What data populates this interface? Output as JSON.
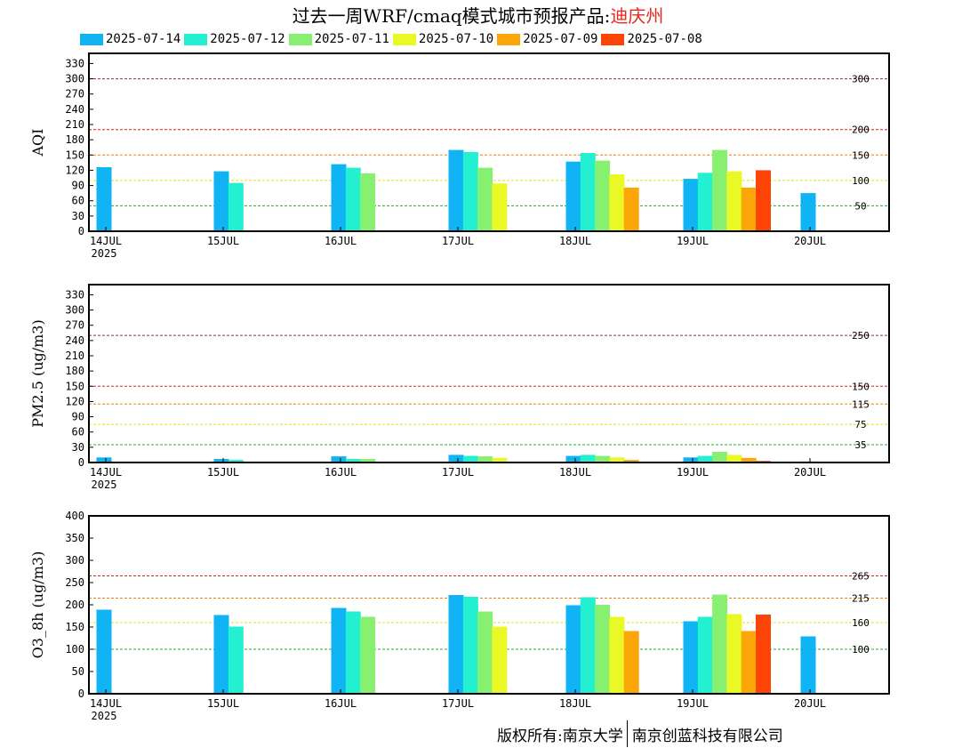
{
  "header": {
    "title_prefix": "过去一周WRF/cmaq模式城市预报产品:",
    "city": "迪庆州"
  },
  "legend": [
    {
      "label": "2025-07-14",
      "color": "#10b4f4"
    },
    {
      "label": "2025-07-12",
      "color": "#22f0d0"
    },
    {
      "label": "2025-07-11",
      "color": "#88f070"
    },
    {
      "label": "2025-07-10",
      "color": "#eaf826"
    },
    {
      "label": "2025-07-09",
      "color": "#fca60a"
    },
    {
      "label": "2025-07-08",
      "color": "#fc4406"
    }
  ],
  "footer": {
    "left": "版权所有:南京大学",
    "right": "南京创蓝科技有限公司"
  },
  "chart_data": [
    {
      "type": "bar",
      "ylabel": "AQI",
      "ylim": [
        0,
        350
      ],
      "yticks": [
        0,
        30,
        60,
        90,
        120,
        150,
        180,
        210,
        240,
        270,
        300,
        330
      ],
      "x_ticks": [
        "14JUL",
        "15JUL",
        "16JUL",
        "17JUL",
        "18JUL",
        "19JUL",
        "20JUL"
      ],
      "x_year": "2025",
      "thresholds": [
        {
          "value": 300,
          "label": "300",
          "color": "#a0205a"
        },
        {
          "value": 200,
          "label": "200",
          "color": "#dd2020"
        },
        {
          "value": 150,
          "label": "150",
          "color": "#ee8010"
        },
        {
          "value": 100,
          "label": "100",
          "color": "#e8e010"
        },
        {
          "value": 50,
          "label": "50",
          "color": "#20b020"
        }
      ],
      "series": [
        {
          "name": "2025-07-14",
          "values": [
            126,
            118,
            132,
            160,
            137,
            103,
            75
          ]
        },
        {
          "name": "2025-07-12",
          "values": [
            95,
            125,
            156,
            154,
            115
          ]
        },
        {
          "name": "2025-07-11",
          "values": [
            114,
            125,
            139,
            160
          ]
        },
        {
          "name": "2025-07-10",
          "values": [
            94,
            112,
            118
          ]
        },
        {
          "name": "2025-07-09",
          "values": [
            86,
            86
          ]
        },
        {
          "name": "2025-07-08",
          "values": [
            120
          ]
        }
      ]
    },
    {
      "type": "bar",
      "ylabel": "PM2.5 (ug/m3)",
      "ylim": [
        0,
        350
      ],
      "yticks": [
        0,
        30,
        60,
        90,
        120,
        150,
        180,
        210,
        240,
        270,
        300,
        330
      ],
      "x_ticks": [
        "14JUL",
        "15JUL",
        "16JUL",
        "17JUL",
        "18JUL",
        "19JUL",
        "20JUL"
      ],
      "x_year": "2025",
      "thresholds": [
        {
          "value": 250,
          "label": "250",
          "color": "#a0205a"
        },
        {
          "value": 150,
          "label": "150",
          "color": "#dd2020"
        },
        {
          "value": 115,
          "label": "115",
          "color": "#ee8010"
        },
        {
          "value": 75,
          "label": "75",
          "color": "#e8e010"
        },
        {
          "value": 35,
          "label": "35",
          "color": "#20b020"
        }
      ],
      "series": [
        {
          "name": "2025-07-14",
          "values": [
            10,
            7,
            12,
            15,
            13,
            10,
            2
          ]
        },
        {
          "name": "2025-07-12",
          "values": [
            5,
            7,
            13,
            15,
            13
          ]
        },
        {
          "name": "2025-07-11",
          "values": [
            7,
            12,
            13,
            21
          ]
        },
        {
          "name": "2025-07-10",
          "values": [
            9,
            10,
            15
          ]
        },
        {
          "name": "2025-07-09",
          "values": [
            5,
            9
          ]
        },
        {
          "name": "2025-07-08",
          "values": [
            3
          ]
        }
      ]
    },
    {
      "type": "bar",
      "ylabel": "O3_8h (ug/m3)",
      "ylim": [
        0,
        400
      ],
      "yticks": [
        0,
        50,
        100,
        150,
        200,
        250,
        300,
        350,
        400
      ],
      "x_ticks": [
        "14JUL",
        "15JUL",
        "16JUL",
        "17JUL",
        "18JUL",
        "19JUL",
        "20JUL"
      ],
      "x_year": "2025",
      "thresholds": [
        {
          "value": 265,
          "label": "265",
          "color": "#dd2020"
        },
        {
          "value": 215,
          "label": "215",
          "color": "#ee8010"
        },
        {
          "value": 160,
          "label": "160",
          "color": "#e8e010"
        },
        {
          "value": 100,
          "label": "100",
          "color": "#20b020"
        }
      ],
      "series": [
        {
          "name": "2025-07-14",
          "values": [
            189,
            177,
            193,
            222,
            199,
            163,
            129
          ]
        },
        {
          "name": "2025-07-12",
          "values": [
            151,
            185,
            218,
            217,
            173
          ]
        },
        {
          "name": "2025-07-11",
          "values": [
            173,
            185,
            200,
            223
          ]
        },
        {
          "name": "2025-07-10",
          "values": [
            151,
            173,
            179
          ]
        },
        {
          "name": "2025-07-09",
          "values": [
            141,
            141
          ]
        },
        {
          "name": "2025-07-08",
          "values": [
            178
          ]
        }
      ]
    }
  ]
}
